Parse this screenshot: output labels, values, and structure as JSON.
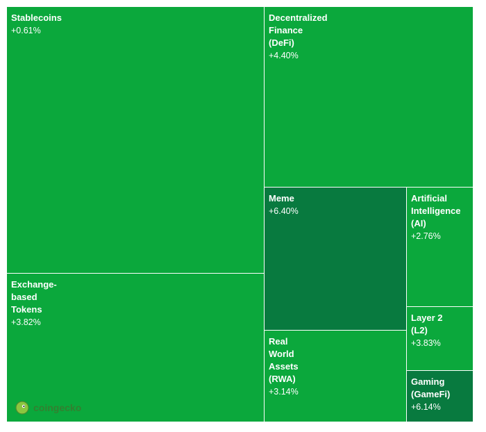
{
  "chart_data": {
    "type": "treemap",
    "tiles": [
      {
        "name": "Stablecoins",
        "change": "+0.61%",
        "value_pct": 0.61,
        "color": "#0ba83c"
      },
      {
        "name": "Decentralized\nFinance\n(DeFi)",
        "change": "+4.40%",
        "value_pct": 4.4,
        "color": "#0ba83c"
      },
      {
        "name": "Exchange-\nbased\nTokens",
        "change": "+3.82%",
        "value_pct": 3.82,
        "color": "#0ba83c"
      },
      {
        "name": "Meme",
        "change": "+6.40%",
        "value_pct": 6.4,
        "color": "#087a3f"
      },
      {
        "name": "Artificial\nIntelligence\n(AI)",
        "change": "+2.76%",
        "value_pct": 2.76,
        "color": "#0ba83c"
      },
      {
        "name": "Real\nWorld\nAssets\n(RWA)",
        "change": "+3.14%",
        "value_pct": 3.14,
        "color": "#0ba83c"
      },
      {
        "name": "Layer 2\n(L2)",
        "change": "+3.83%",
        "value_pct": 3.83,
        "color": "#0ba83c"
      },
      {
        "name": "Gaming\n(GameFi)",
        "change": "+6.14%",
        "value_pct": 6.14,
        "color": "#087a3f"
      }
    ]
  },
  "logo": {
    "text": "coingecko",
    "icon": "gecko-logo-icon"
  }
}
